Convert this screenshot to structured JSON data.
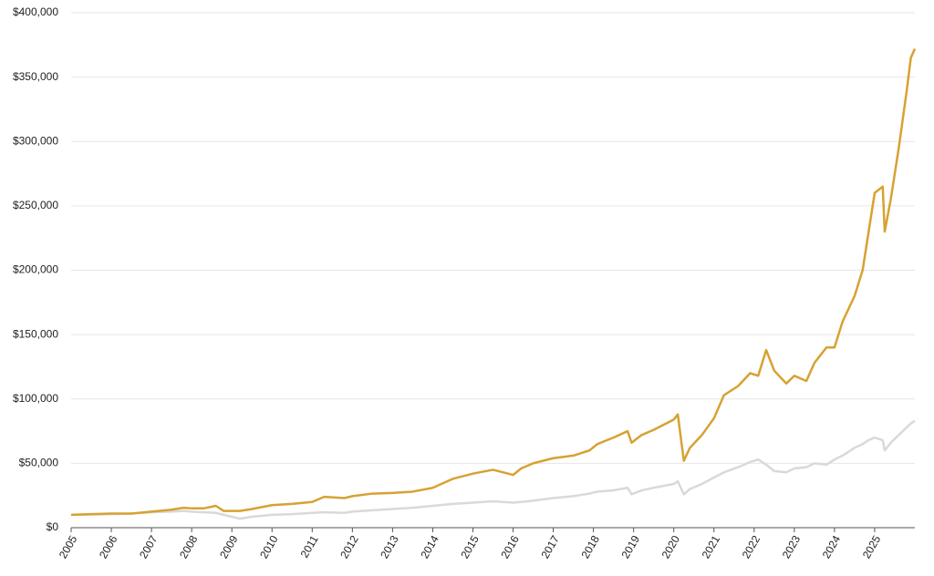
{
  "chart_data": {
    "type": "line",
    "x": [
      2005,
      2005.5,
      2006,
      2006.5,
      2007,
      2007.5,
      2007.8,
      2008,
      2008.3,
      2008.6,
      2008.8,
      2009,
      2009.2,
      2009.5,
      2010,
      2010.5,
      2011,
      2011.3,
      2011.8,
      2012,
      2012.5,
      2013,
      2013.5,
      2014,
      2014.5,
      2015,
      2015.5,
      2016,
      2016.2,
      2016.5,
      2017,
      2017.5,
      2017.9,
      2018.1,
      2018.5,
      2018.85,
      2018.95,
      2019.2,
      2019.5,
      2020,
      2020.1,
      2020.25,
      2020.4,
      2020.7,
      2021,
      2021.25,
      2021.6,
      2021.9,
      2022.1,
      2022.3,
      2022.5,
      2022.8,
      2023,
      2023.3,
      2023.5,
      2023.8,
      2024,
      2024.2,
      2024.5,
      2024.7,
      2024.85,
      2025,
      2025.2,
      2025.25,
      2025.4,
      2025.6,
      2025.8,
      2025.9,
      2026
    ],
    "series": [
      {
        "color": "#d9d9d9",
        "values": [
          10000,
          10200,
          10500,
          11000,
          12000,
          12500,
          13000,
          12500,
          12000,
          11500,
          10000,
          8500,
          7000,
          8500,
          10000,
          10500,
          11500,
          12000,
          11500,
          12500,
          13500,
          14500,
          15500,
          17000,
          18500,
          19500,
          20500,
          19500,
          20000,
          21000,
          23000,
          24500,
          26500,
          28000,
          29000,
          31000,
          26000,
          29000,
          31000,
          34000,
          36000,
          26000,
          30000,
          34000,
          39000,
          43000,
          47000,
          51000,
          53000,
          49000,
          44000,
          43000,
          46000,
          47000,
          50000,
          49000,
          53000,
          56000,
          62000,
          65000,
          68000,
          70000,
          68000,
          60000,
          66000,
          72000,
          78000,
          81000,
          83000
        ]
      },
      {
        "color": "#d6a232",
        "values": [
          10000,
          10500,
          11000,
          11000,
          12500,
          14000,
          15500,
          15000,
          15000,
          17000,
          13000,
          13000,
          13000,
          14500,
          17500,
          18500,
          20000,
          24000,
          23000,
          24500,
          26500,
          27000,
          28000,
          31000,
          38000,
          42000,
          45000,
          41000,
          46000,
          50000,
          54000,
          56000,
          60000,
          65000,
          70000,
          75000,
          66000,
          72000,
          76000,
          84000,
          88000,
          52000,
          62000,
          72000,
          85000,
          103000,
          110000,
          120000,
          118000,
          138000,
          122000,
          112000,
          118000,
          114000,
          128000,
          140000,
          140000,
          160000,
          180000,
          200000,
          230000,
          260000,
          265000,
          230000,
          255000,
          295000,
          340000,
          365000,
          372000
        ]
      }
    ],
    "xlim": [
      2005,
      2026
    ],
    "xticks": [
      2005,
      2006,
      2007,
      2008,
      2009,
      2010,
      2011,
      2012,
      2013,
      2014,
      2015,
      2016,
      2017,
      2018,
      2019,
      2020,
      2021,
      2022,
      2023,
      2024,
      2025
    ],
    "ylim": [
      0,
      400000
    ],
    "yticks": [
      {
        "value": 0,
        "label": "$0"
      },
      {
        "value": 50000,
        "label": "$50,000"
      },
      {
        "value": 100000,
        "label": "$100,000"
      },
      {
        "value": 150000,
        "label": "$150,000"
      },
      {
        "value": 200000,
        "label": "$200,000"
      },
      {
        "value": 250000,
        "label": "$250,000"
      },
      {
        "value": 300000,
        "label": "$300,000"
      },
      {
        "value": 350000,
        "label": "$350,000"
      },
      {
        "value": 400000,
        "label": "$400,000"
      }
    ],
    "grid": true
  }
}
